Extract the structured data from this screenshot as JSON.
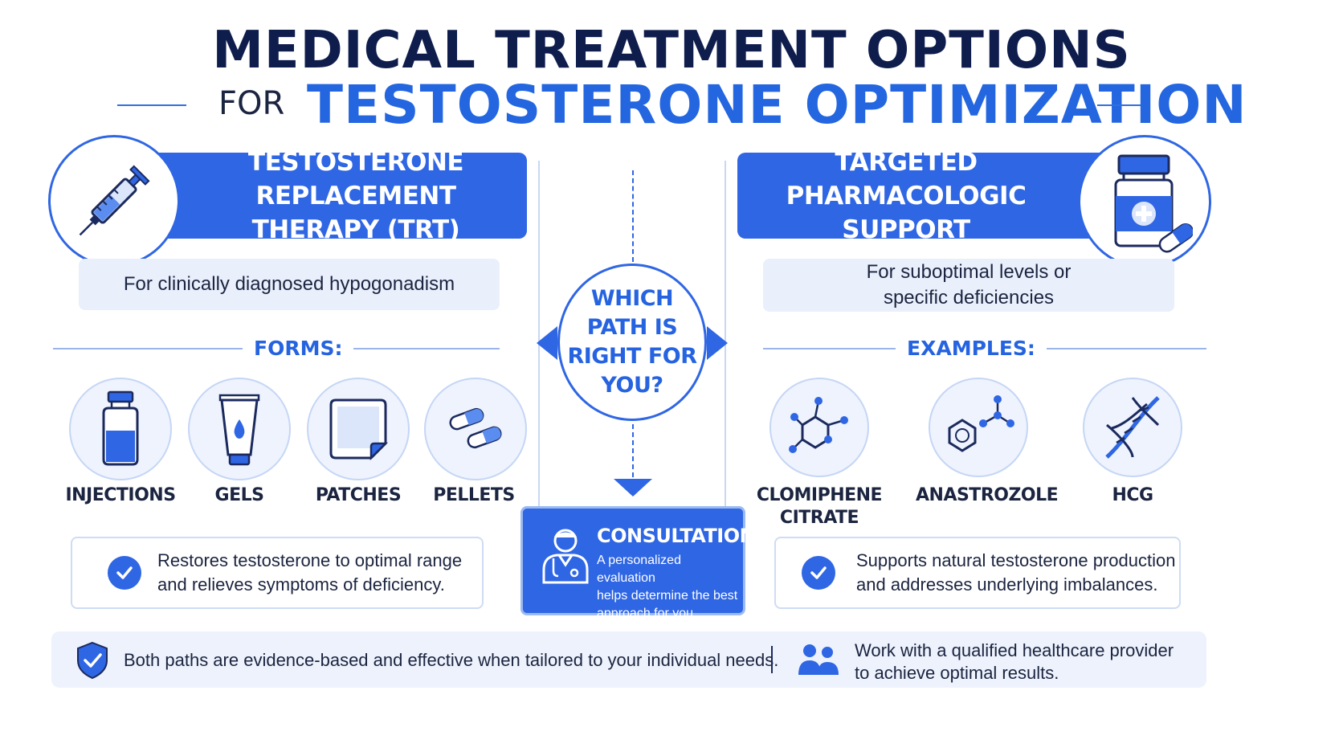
{
  "title": {
    "line1": "MEDICAL TREATMENT OPTIONS",
    "for": "FOR",
    "line2": "TESTOSTERONE OPTIMIZATION"
  },
  "left": {
    "banner_line1": "TESTOSTERONE REPLACEMENT",
    "banner_line2": "THERAPY (TRT)",
    "icon": "syringe-icon",
    "subtitle": "For clinically diagnosed hypogonadism",
    "section_label": "FORMS:",
    "items": [
      {
        "label": "INJECTIONS",
        "icon": "vial-icon"
      },
      {
        "label": "GELS",
        "icon": "gel-tube-icon"
      },
      {
        "label": "PATCHES",
        "icon": "patch-icon"
      },
      {
        "label": "PELLETS",
        "icon": "pellets-icon"
      }
    ],
    "benefit_line1": "Restores testosterone to optimal range",
    "benefit_line2": "and relieves symptoms of deficiency."
  },
  "right": {
    "banner_line1": "TARGETED PHARMACOLOGIC",
    "banner_line2": "SUPPORT",
    "icon": "pill-bottle-icon",
    "subtitle_line1": "For suboptimal levels or",
    "subtitle_line2": "specific deficiencies",
    "section_label": "EXAMPLES:",
    "items": [
      {
        "label_line1": "CLOMIPHENE",
        "label_line2": "CITRATE",
        "icon": "molecule-icon"
      },
      {
        "label_line1": "ANASTROZOLE",
        "label_line2": "",
        "icon": "benzene-molecule-icon"
      },
      {
        "label_line1": "HCG",
        "label_line2": "",
        "icon": "dna-icon"
      }
    ],
    "benefit_line1": "Supports natural testosterone production",
    "benefit_line2": "and addresses underlying imbalances."
  },
  "center": {
    "question_lines": [
      "WHICH",
      "PATH IS",
      "RIGHT FOR",
      "YOU?"
    ],
    "consult_title": "CONSULTATION",
    "consult_lines": [
      "A personalized evaluation",
      "helps determine the best",
      "approach for you."
    ],
    "consult_icon": "doctor-icon"
  },
  "footer": {
    "left_text": "Both paths are evidence-based and effective when tailored to your individual needs.",
    "left_icon": "shield-check-icon",
    "right_line1": "Work with a qualified healthcare provider",
    "right_line2": "to achieve optimal results.",
    "right_icon": "people-icon"
  },
  "colors": {
    "primary": "#2f66e4",
    "navy": "#0f1d4d",
    "light_bg": "#e9effb"
  }
}
